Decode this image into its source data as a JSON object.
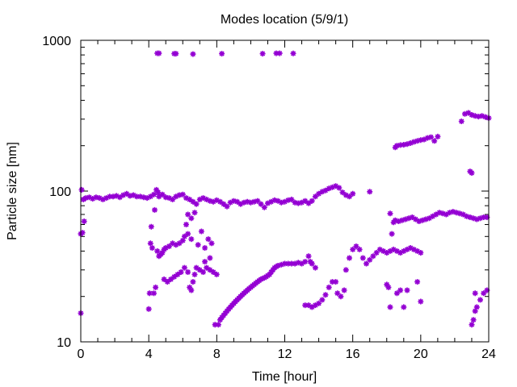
{
  "chart_data": {
    "type": "scatter",
    "title": "Modes location (5/9/1)",
    "xlabel": "Time [hour]",
    "ylabel": "Particle size [nm]",
    "xlim": [
      0,
      24
    ],
    "ylim": [
      10,
      1000
    ],
    "yscale": "log",
    "grid": false,
    "legend": "none",
    "marker_color": "#9400D3",
    "marker": "asterisk",
    "x_ticks": [
      0,
      4,
      8,
      12,
      16,
      20,
      24
    ],
    "y_ticks": [
      10,
      100,
      1000
    ],
    "x_tick_labels": [
      "0",
      "4",
      "8",
      "12",
      "16",
      "20",
      "24"
    ],
    "y_tick_labels": [
      "10",
      "100",
      "1000"
    ],
    "series": [
      {
        "points": [
          [
            0.0,
            15.5
          ],
          [
            0.0,
            52
          ],
          [
            0.05,
            102
          ],
          [
            0.1,
            53
          ],
          [
            0.15,
            88
          ],
          [
            0.2,
            63
          ],
          [
            0.3,
            90
          ],
          [
            0.5,
            91
          ],
          [
            0.7,
            89
          ],
          [
            0.9,
            91
          ],
          [
            1.1,
            90
          ],
          [
            1.3,
            88
          ],
          [
            1.5,
            90
          ],
          [
            1.7,
            92
          ],
          [
            1.9,
            92
          ],
          [
            2.1,
            93
          ],
          [
            2.3,
            91
          ],
          [
            2.5,
            94
          ],
          [
            2.7,
            96
          ],
          [
            2.9,
            93
          ],
          [
            3.1,
            94
          ],
          [
            3.3,
            92
          ],
          [
            3.5,
            92
          ],
          [
            3.7,
            91
          ],
          [
            3.9,
            90
          ],
          [
            4.1,
            92
          ],
          [
            4.3,
            95
          ],
          [
            4.45,
            102
          ],
          [
            4.55,
            98
          ],
          [
            4.5,
            820
          ],
          [
            4.6,
            820
          ],
          [
            5.5,
            815
          ],
          [
            5.6,
            815
          ],
          [
            6.6,
            810
          ],
          [
            8.3,
            815
          ],
          [
            10.7,
            815
          ],
          [
            11.5,
            820
          ],
          [
            11.7,
            820
          ],
          [
            12.5,
            818
          ],
          [
            4.6,
            92
          ],
          [
            4.8,
            95
          ],
          [
            5.0,
            91
          ],
          [
            5.2,
            90
          ],
          [
            5.4,
            88
          ],
          [
            5.6,
            92
          ],
          [
            5.8,
            94
          ],
          [
            6.0,
            95
          ],
          [
            6.2,
            90
          ],
          [
            6.4,
            88
          ],
          [
            6.6,
            85
          ],
          [
            6.8,
            82
          ],
          [
            7.0,
            88
          ],
          [
            7.2,
            90
          ],
          [
            7.4,
            88
          ],
          [
            7.6,
            86
          ],
          [
            7.8,
            85
          ],
          [
            8.0,
            87
          ],
          [
            8.2,
            85
          ],
          [
            8.4,
            82
          ],
          [
            8.6,
            79
          ],
          [
            8.8,
            84
          ],
          [
            9.0,
            86
          ],
          [
            9.2,
            85
          ],
          [
            9.4,
            82
          ],
          [
            9.6,
            84
          ],
          [
            9.8,
            85
          ],
          [
            10.0,
            84
          ],
          [
            10.2,
            85
          ],
          [
            10.4,
            86
          ],
          [
            10.6,
            82
          ],
          [
            10.8,
            78
          ],
          [
            11.0,
            83
          ],
          [
            11.2,
            85
          ],
          [
            11.4,
            87
          ],
          [
            11.6,
            86
          ],
          [
            11.8,
            84
          ],
          [
            12.0,
            85
          ],
          [
            12.2,
            87
          ],
          [
            12.4,
            88
          ],
          [
            12.6,
            84
          ],
          [
            12.8,
            83
          ],
          [
            13.0,
            84
          ],
          [
            13.2,
            86
          ],
          [
            13.4,
            83
          ],
          [
            13.6,
            86
          ],
          [
            13.8,
            92
          ],
          [
            14.0,
            96
          ],
          [
            14.2,
            99
          ],
          [
            14.4,
            101
          ],
          [
            14.6,
            104
          ],
          [
            14.8,
            106
          ],
          [
            15.0,
            108
          ],
          [
            15.2,
            105
          ],
          [
            15.4,
            98
          ],
          [
            15.6,
            94
          ],
          [
            15.8,
            92
          ],
          [
            16.0,
            96
          ],
          [
            17.0,
            99
          ],
          [
            4.0,
            16.5
          ],
          [
            4.05,
            21
          ],
          [
            4.1,
            45
          ],
          [
            4.15,
            58
          ],
          [
            4.2,
            42
          ],
          [
            4.3,
            21
          ],
          [
            4.4,
            23
          ],
          [
            4.35,
            75
          ],
          [
            4.5,
            40
          ],
          [
            4.6,
            37
          ],
          [
            4.7,
            38
          ],
          [
            4.8,
            39
          ],
          [
            4.9,
            41
          ],
          [
            5.0,
            42
          ],
          [
            5.2,
            43
          ],
          [
            5.4,
            45
          ],
          [
            5.6,
            44
          ],
          [
            5.8,
            45
          ],
          [
            6.0,
            47
          ],
          [
            6.1,
            50
          ],
          [
            6.3,
            52
          ],
          [
            6.5,
            48
          ],
          [
            4.9,
            26
          ],
          [
            5.1,
            25
          ],
          [
            5.3,
            26
          ],
          [
            5.5,
            27
          ],
          [
            5.7,
            28
          ],
          [
            5.9,
            29
          ],
          [
            6.1,
            31
          ],
          [
            6.3,
            29
          ],
          [
            6.4,
            23
          ],
          [
            6.5,
            22
          ],
          [
            6.6,
            25
          ],
          [
            6.7,
            28
          ],
          [
            6.8,
            31
          ],
          [
            7.0,
            30
          ],
          [
            7.2,
            29
          ],
          [
            7.4,
            31
          ],
          [
            7.6,
            30
          ],
          [
            7.8,
            29
          ],
          [
            8.0,
            28
          ],
          [
            6.2,
            60
          ],
          [
            6.3,
            70
          ],
          [
            6.5,
            66
          ],
          [
            6.7,
            72
          ],
          [
            6.9,
            44
          ],
          [
            7.1,
            54
          ],
          [
            7.3,
            42
          ],
          [
            7.5,
            48
          ],
          [
            7.7,
            45
          ],
          [
            7.3,
            34
          ],
          [
            7.6,
            36
          ],
          [
            7.9,
            13
          ],
          [
            8.1,
            13
          ],
          [
            8.2,
            14
          ],
          [
            8.3,
            14.5
          ],
          [
            8.4,
            15
          ],
          [
            8.5,
            15.5
          ],
          [
            8.6,
            16
          ],
          [
            8.7,
            16.5
          ],
          [
            8.8,
            17
          ],
          [
            8.9,
            17.5
          ],
          [
            9.0,
            18
          ],
          [
            9.1,
            18.5
          ],
          [
            9.2,
            19
          ],
          [
            9.3,
            19.5
          ],
          [
            9.4,
            20
          ],
          [
            9.5,
            20.5
          ],
          [
            9.6,
            21
          ],
          [
            9.7,
            21.5
          ],
          [
            9.8,
            22
          ],
          [
            9.9,
            22.5
          ],
          [
            10.0,
            23
          ],
          [
            10.1,
            23.5
          ],
          [
            10.2,
            24
          ],
          [
            10.3,
            24.5
          ],
          [
            10.4,
            25
          ],
          [
            10.5,
            25.5
          ],
          [
            10.6,
            26
          ],
          [
            10.7,
            26.3
          ],
          [
            10.8,
            26.6
          ],
          [
            10.9,
            27
          ],
          [
            11.0,
            27.5
          ],
          [
            11.1,
            28
          ],
          [
            11.2,
            29
          ],
          [
            11.3,
            30
          ],
          [
            11.4,
            31
          ],
          [
            11.5,
            31.5
          ],
          [
            11.6,
            32
          ],
          [
            11.8,
            32.5
          ],
          [
            12.0,
            33
          ],
          [
            12.2,
            33
          ],
          [
            12.4,
            33
          ],
          [
            12.6,
            33
          ],
          [
            12.8,
            33.5
          ],
          [
            13.0,
            33
          ],
          [
            13.2,
            34
          ],
          [
            13.4,
            37
          ],
          [
            13.5,
            34
          ],
          [
            13.6,
            33
          ],
          [
            13.8,
            31
          ],
          [
            13.2,
            17.5
          ],
          [
            13.4,
            17.5
          ],
          [
            13.6,
            17
          ],
          [
            13.8,
            17.5
          ],
          [
            14.0,
            18
          ],
          [
            14.2,
            19
          ],
          [
            14.4,
            20.5
          ],
          [
            14.6,
            23
          ],
          [
            14.8,
            25
          ],
          [
            15.0,
            25
          ],
          [
            15.1,
            21
          ],
          [
            15.3,
            20
          ],
          [
            15.5,
            22
          ],
          [
            15.6,
            30
          ],
          [
            15.8,
            36
          ],
          [
            16.0,
            41
          ],
          [
            16.2,
            43
          ],
          [
            16.4,
            41
          ],
          [
            16.6,
            36
          ],
          [
            16.8,
            33
          ],
          [
            17.0,
            35
          ],
          [
            17.2,
            37
          ],
          [
            17.4,
            39
          ],
          [
            17.6,
            41
          ],
          [
            17.8,
            40
          ],
          [
            18.0,
            39
          ],
          [
            18.2,
            40
          ],
          [
            18.4,
            41
          ],
          [
            18.6,
            40
          ],
          [
            18.8,
            39
          ],
          [
            19.0,
            40
          ],
          [
            19.2,
            41
          ],
          [
            19.4,
            42
          ],
          [
            19.6,
            41
          ],
          [
            19.8,
            40
          ],
          [
            20.0,
            39
          ],
          [
            18.2,
            71
          ],
          [
            18.4,
            62
          ],
          [
            18.0,
            24
          ],
          [
            18.1,
            23
          ],
          [
            18.2,
            17
          ],
          [
            18.6,
            21
          ],
          [
            18.8,
            22
          ],
          [
            19.0,
            17
          ],
          [
            19.2,
            22
          ],
          [
            19.8,
            25
          ],
          [
            20.0,
            18.5
          ],
          [
            18.3,
            52
          ],
          [
            18.5,
            64
          ],
          [
            18.7,
            63
          ],
          [
            18.9,
            64
          ],
          [
            19.1,
            65
          ],
          [
            19.3,
            66
          ],
          [
            19.5,
            67
          ],
          [
            19.7,
            65
          ],
          [
            19.9,
            63
          ],
          [
            20.1,
            64
          ],
          [
            20.3,
            65
          ],
          [
            20.5,
            66
          ],
          [
            20.7,
            68
          ],
          [
            20.9,
            70
          ],
          [
            21.1,
            72
          ],
          [
            21.3,
            71
          ],
          [
            21.5,
            70
          ],
          [
            21.7,
            72
          ],
          [
            21.9,
            73
          ],
          [
            22.1,
            72
          ],
          [
            22.3,
            71
          ],
          [
            22.5,
            70
          ],
          [
            22.7,
            68
          ],
          [
            22.9,
            67
          ],
          [
            23.1,
            66
          ],
          [
            23.3,
            65
          ],
          [
            23.5,
            66
          ],
          [
            23.7,
            67
          ],
          [
            23.9,
            67
          ],
          [
            18.5,
            195
          ],
          [
            18.6,
            200
          ],
          [
            18.8,
            202
          ],
          [
            19.0,
            203
          ],
          [
            19.2,
            205
          ],
          [
            19.4,
            208
          ],
          [
            19.6,
            212
          ],
          [
            19.8,
            215
          ],
          [
            20.0,
            218
          ],
          [
            20.2,
            220
          ],
          [
            20.4,
            225
          ],
          [
            20.6,
            228
          ],
          [
            20.8,
            215
          ],
          [
            21.0,
            230
          ],
          [
            22.4,
            290
          ],
          [
            22.6,
            325
          ],
          [
            22.8,
            330
          ],
          [
            23.0,
            320
          ],
          [
            23.2,
            315
          ],
          [
            23.4,
            312
          ],
          [
            23.6,
            315
          ],
          [
            23.8,
            310
          ],
          [
            24.0,
            305
          ],
          [
            22.9,
            135
          ],
          [
            23.0,
            132
          ],
          [
            23.0,
            13
          ],
          [
            23.1,
            14
          ],
          [
            23.2,
            16
          ],
          [
            23.3,
            17
          ],
          [
            23.5,
            19
          ],
          [
            23.7,
            21
          ],
          [
            23.9,
            22
          ],
          [
            23.2,
            21
          ]
        ]
      }
    ]
  }
}
